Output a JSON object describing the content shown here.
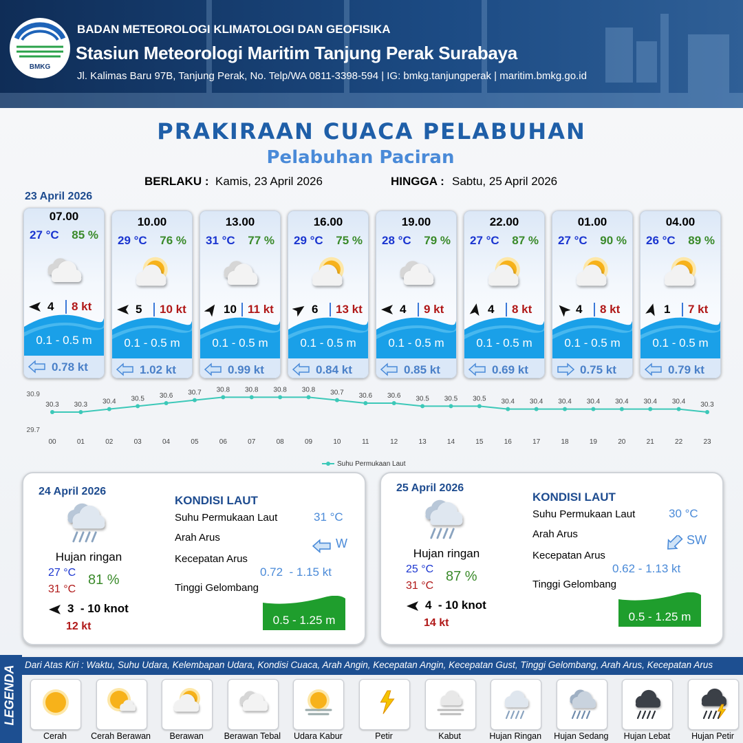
{
  "header": {
    "logo": "BMKG",
    "organization": "BADAN METEOROLOGI KLIMATOLOGI DAN GEOFISIKA",
    "station": "Stasiun Meteorologi Maritim Tanjung Perak Surabaya",
    "address": "Jl. Kalimas Baru 97B, Tanjung Perak, No. Telp/WA 0811-3398-594 | IG: bmkg.tanjungperak | maritim.bmkg.go.id"
  },
  "title": "PRAKIRAAN CUACA PELABUHAN",
  "subtitle": "Pelabuhan Paciran",
  "validity": {
    "from_label": "BERLAKU :",
    "from": "Kamis, 23 April 2026",
    "to_label": "HINGGA :",
    "to": "Sabtu, 25 April 2026"
  },
  "day1_date": "23 April 2026",
  "hourly": [
    {
      "time": "07.00",
      "temperature": "27 °C",
      "humidity": "85 %",
      "wind_speed": "4",
      "gust": "8 kt",
      "wave_height": "0.1 - 0.5 m",
      "current_speed": "0.78 kt"
    },
    {
      "time": "10.00",
      "temperature": "29 °C",
      "humidity": "76 %",
      "wind_speed": "5",
      "gust": "10 kt",
      "wave_height": "0.1 - 0.5 m",
      "current_speed": "1.02 kt"
    },
    {
      "time": "13.00",
      "temperature": "31 °C",
      "humidity": "77 %",
      "wind_speed": "10",
      "gust": "11 kt",
      "wave_height": "0.1 - 0.5 m",
      "current_speed": "0.99 kt"
    },
    {
      "time": "16.00",
      "temperature": "29 °C",
      "humidity": "75 %",
      "wind_speed": "6",
      "gust": "13 kt",
      "wave_height": "0.1 - 0.5 m",
      "current_speed": "0.84 kt"
    },
    {
      "time": "19.00",
      "temperature": "28 °C",
      "humidity": "79 %",
      "wind_speed": "4",
      "gust": "9 kt",
      "wave_height": "0.1 - 0.5 m",
      "current_speed": "0.85 kt"
    },
    {
      "time": "22.00",
      "temperature": "27 °C",
      "humidity": "87 %",
      "wind_speed": "4",
      "gust": "8 kt",
      "wave_height": "0.1 - 0.5 m",
      "current_speed": "0.69 kt"
    },
    {
      "time": "01.00",
      "temperature": "27 °C",
      "humidity": "90 %",
      "wind_speed": "4",
      "gust": "8 kt",
      "wave_height": "0.1 - 0.5 m",
      "current_speed": "0.75 kt"
    },
    {
      "time": "04.00",
      "temperature": "26 °C",
      "humidity": "89 %",
      "wind_speed": "1",
      "gust": "7 kt",
      "wave_height": "0.1 - 0.5 m",
      "current_speed": "0.79 kt"
    }
  ],
  "chart_data": {
    "type": "line",
    "categories": [
      "00",
      "01",
      "02",
      "03",
      "04",
      "05",
      "06",
      "07",
      "08",
      "09",
      "10",
      "11",
      "12",
      "13",
      "14",
      "15",
      "16",
      "17",
      "18",
      "19",
      "20",
      "21",
      "22",
      "23"
    ],
    "series": [
      {
        "name": "Suhu Permukaan Laut",
        "color": "#3cc8b8",
        "values": [
          30.3,
          30.3,
          30.4,
          30.5,
          30.6,
          30.7,
          30.8,
          30.8,
          30.8,
          30.8,
          30.7,
          30.6,
          30.6,
          30.5,
          30.5,
          30.5,
          30.4,
          30.4,
          30.4,
          30.4,
          30.4,
          30.4,
          30.4,
          30.3
        ]
      }
    ],
    "ylim": [
      29.7,
      30.9
    ],
    "yticks": [
      29.7,
      30.9
    ],
    "grid": false,
    "legend": "bottom"
  },
  "daily": [
    {
      "date": "24 April 2026",
      "condition": "Hujan ringan",
      "temp_min": "27 °C",
      "temp_max": "31 °C",
      "humidity": "81 %",
      "wind": "3  - 10 knot",
      "gust": "12 kt",
      "sea_heading": "KONDISI LAUT",
      "sst_label": "Suhu Permukaan Laut",
      "sst": "31 °C",
      "current_dir_label": "Arah Arus",
      "current_dir": "W",
      "current_speed_label": "Kecepatan Arus",
      "current_speed": "0.72  - 1.15 kt",
      "wave_label": "Tinggi Gelombang",
      "wave_height": "0.5 - 1.25 m"
    },
    {
      "date": "25 April 2026",
      "condition": "Hujan ringan",
      "temp_min": "25 °C",
      "temp_max": "31 °C",
      "humidity": "87 %",
      "wind": "4  - 10 knot",
      "gust": "14 kt",
      "sea_heading": "KONDISI LAUT",
      "sst_label": "Suhu Permukaan Laut",
      "sst": "30 °C",
      "current_dir_label": "Arah Arus",
      "current_dir": "SW",
      "current_speed_label": "Kecepatan Arus",
      "current_speed": "0.62 - 1.13 kt",
      "wave_label": "Tinggi Gelombang",
      "wave_height": "0.5 - 1.25 m"
    }
  ],
  "legend": {
    "title": "LEGENDA",
    "description": "Dari Atas Kiri : Waktu, Suhu Udara, Kelembapan Udara, Kondisi Cuaca, Arah Angin, Kecepatan Angin, Kecepatan Gust, Tinggi Gelombang, Arah Arus, Kecepatan Arus",
    "items": [
      "Cerah",
      "Cerah Berawan",
      "Berawan",
      "Berawan Tebal",
      "Udara Kabur",
      "Petir",
      "Kabut",
      "Hujan Ringan",
      "Hujan Sedang",
      "Hujan Lebat",
      "Hujan Petir"
    ]
  }
}
